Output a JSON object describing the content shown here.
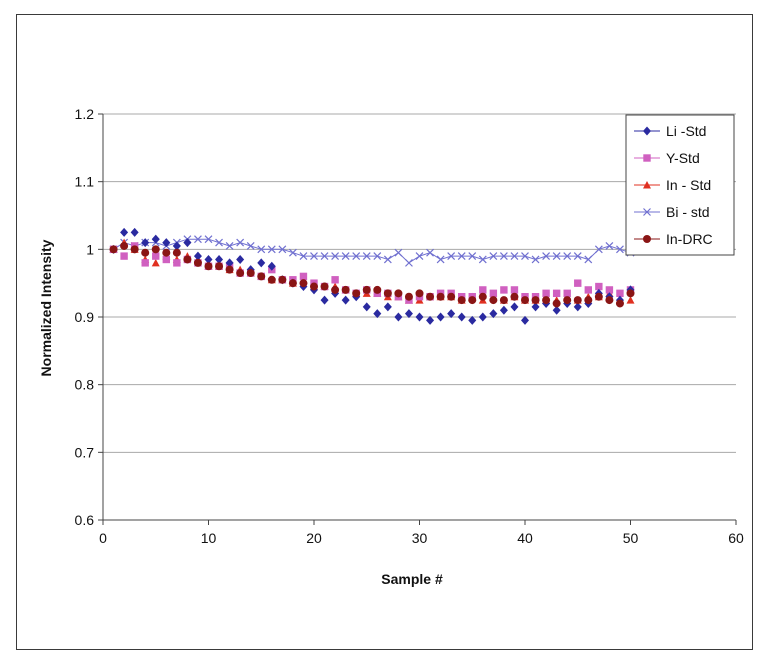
{
  "chart_data": {
    "type": "scatter",
    "title": "",
    "xlabel": "Sample #",
    "ylabel": "Normalized Intensity",
    "xlim": [
      0,
      60
    ],
    "ylim": [
      0.6,
      1.2
    ],
    "xticks": [
      "0",
      "10",
      "20",
      "30",
      "40",
      "50",
      "60"
    ],
    "yticks": [
      "0.6",
      "0.7",
      "0.8",
      "0.9",
      "1",
      "1.1",
      "1.2"
    ],
    "xtick_values": [
      0,
      10,
      20,
      30,
      40,
      50,
      60
    ],
    "ytick_values": [
      0.6,
      0.7,
      0.8,
      0.9,
      1.0,
      1.1,
      1.2
    ],
    "grid": "horizontal",
    "legend_position": "top-right",
    "x": [
      1,
      2,
      3,
      4,
      5,
      6,
      7,
      8,
      9,
      10,
      11,
      12,
      13,
      14,
      15,
      16,
      17,
      18,
      19,
      20,
      21,
      22,
      23,
      24,
      25,
      26,
      27,
      28,
      29,
      30,
      31,
      32,
      33,
      34,
      35,
      36,
      37,
      38,
      39,
      40,
      41,
      42,
      43,
      44,
      45,
      46,
      47,
      48,
      49,
      50
    ],
    "series": [
      {
        "name": "Li -Std",
        "color": "#2a2aa0",
        "marker": "diamond",
        "connected": false,
        "values": [
          1.0,
          1.025,
          1.025,
          1.01,
          1.015,
          1.01,
          1.005,
          1.01,
          0.99,
          0.985,
          0.985,
          0.98,
          0.985,
          0.97,
          0.98,
          0.975,
          0.955,
          0.95,
          0.945,
          0.94,
          0.925,
          0.935,
          0.925,
          0.93,
          0.915,
          0.905,
          0.915,
          0.9,
          0.905,
          0.9,
          0.895,
          0.9,
          0.905,
          0.9,
          0.895,
          0.9,
          0.905,
          0.91,
          0.915,
          0.895,
          0.915,
          0.92,
          0.91,
          0.92,
          0.915,
          0.92,
          0.935,
          0.93,
          0.925,
          0.94
        ]
      },
      {
        "name": "Y-Std",
        "color": "#d060c0",
        "marker": "square",
        "connected": false,
        "values": [
          1.0,
          0.99,
          1.005,
          0.98,
          0.99,
          0.985,
          0.98,
          0.985,
          0.98,
          0.975,
          0.975,
          0.975,
          0.965,
          0.965,
          0.96,
          0.97,
          0.955,
          0.955,
          0.96,
          0.95,
          0.945,
          0.955,
          0.94,
          0.935,
          0.94,
          0.935,
          0.935,
          0.93,
          0.925,
          0.93,
          0.93,
          0.935,
          0.935,
          0.93,
          0.93,
          0.94,
          0.935,
          0.94,
          0.94,
          0.93,
          0.93,
          0.935,
          0.935,
          0.935,
          0.95,
          0.94,
          0.945,
          0.94,
          0.935,
          0.94
        ]
      },
      {
        "name": "In - Std",
        "color": "#e03020",
        "marker": "triangle",
        "connected": false,
        "values": [
          1.0,
          1.01,
          1.0,
          0.985,
          0.98,
          0.99,
          0.985,
          0.99,
          0.985,
          0.975,
          0.975,
          0.97,
          0.97,
          0.965,
          0.96,
          0.955,
          0.955,
          0.95,
          0.955,
          0.945,
          0.945,
          0.945,
          0.94,
          0.935,
          0.935,
          0.935,
          0.93,
          0.93,
          0.925,
          0.925,
          0.93,
          0.93,
          0.93,
          0.925,
          0.93,
          0.925,
          0.93,
          0.925,
          0.93,
          0.925,
          0.925,
          0.925,
          0.925,
          0.93,
          0.925,
          0.93,
          0.93,
          0.935,
          0.925,
          0.925
        ]
      },
      {
        "name": "Bi - std",
        "color": "#7070d0",
        "marker": "x",
        "connected": true,
        "values": [
          1.0,
          1.01,
          1.005,
          1.01,
          1.01,
          1.005,
          1.01,
          1.015,
          1.015,
          1.015,
          1.01,
          1.005,
          1.01,
          1.005,
          1.0,
          1.0,
          1.0,
          0.995,
          0.99,
          0.99,
          0.99,
          0.99,
          0.99,
          0.99,
          0.99,
          0.99,
          0.985,
          0.995,
          0.98,
          0.99,
          0.995,
          0.985,
          0.99,
          0.99,
          0.99,
          0.985,
          0.99,
          0.99,
          0.99,
          0.99,
          0.985,
          0.99,
          0.99,
          0.99,
          0.99,
          0.985,
          1.0,
          1.005,
          1.0,
          0.995
        ]
      },
      {
        "name": "In-DRC",
        "color": "#8a1515",
        "marker": "circle",
        "connected": false,
        "values": [
          1.0,
          1.005,
          1.0,
          0.995,
          1.0,
          0.995,
          0.995,
          0.985,
          0.98,
          0.975,
          0.975,
          0.97,
          0.965,
          0.965,
          0.96,
          0.955,
          0.955,
          0.95,
          0.95,
          0.945,
          0.945,
          0.94,
          0.94,
          0.935,
          0.94,
          0.94,
          0.935,
          0.935,
          0.93,
          0.935,
          0.93,
          0.93,
          0.93,
          0.925,
          0.925,
          0.93,
          0.925,
          0.925,
          0.93,
          0.925,
          0.925,
          0.925,
          0.92,
          0.925,
          0.925,
          0.925,
          0.93,
          0.925,
          0.92,
          0.935
        ]
      }
    ]
  }
}
